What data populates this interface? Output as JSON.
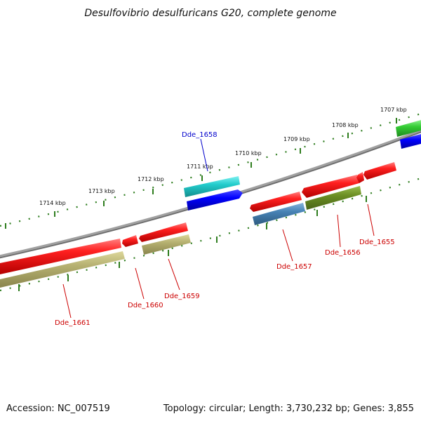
{
  "title": "Desulfovibrio desulfuricans G20, complete genome",
  "footer": {
    "accession": "Accession: NC_007519",
    "topology": "Topology: circular; Length: 3,730,232 bp; Genes: 3,855"
  },
  "ruler": {
    "ticks": [
      "1714 kbp",
      "1713 kbp",
      "1712 kbp",
      "1711 kbp",
      "1710 kbp",
      "1709 kbp",
      "1708 kbp",
      "1707 kbp"
    ]
  },
  "genes": [
    {
      "id": "Dde_1661",
      "color": "#cc0000"
    },
    {
      "id": "Dde_1660",
      "color": "#cc0000"
    },
    {
      "id": "Dde_1659",
      "color": "#cc0000"
    },
    {
      "id": "Dde_1658",
      "color": "#0000cc"
    },
    {
      "id": "Dde_1657",
      "color": "#cc0000"
    },
    {
      "id": "Dde_1656",
      "color": "#cc0000"
    },
    {
      "id": "Dde_1655",
      "color": "#cc0000"
    }
  ],
  "colors": {
    "cds_red": "#ff1a1a",
    "cds_blue": "#0000ff",
    "cds_cyan": "#22cccc",
    "cds_olive": "#6b8e23",
    "cds_khaki": "#b5b070",
    "cds_steel": "#4682b4",
    "cds_green": "#33cc33",
    "tick_green": "#2e7d1e",
    "backbone": "#808080"
  }
}
